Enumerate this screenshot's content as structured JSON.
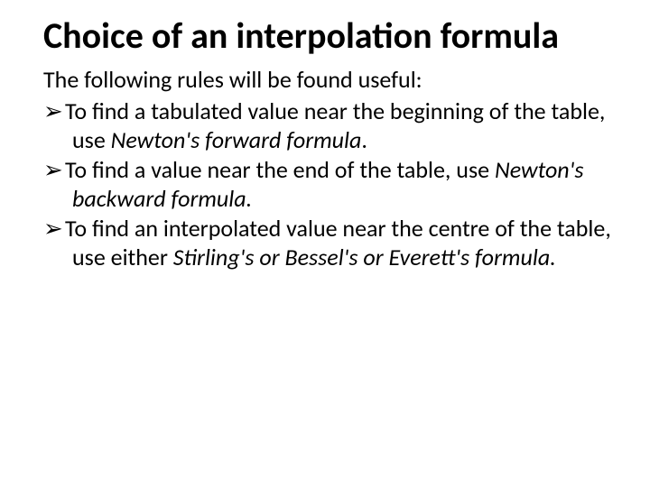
{
  "title": "Choice of an interpolation formula",
  "intro": "The following rules will be found useful:",
  "bullet_glyph": "➢",
  "items": [
    {
      "pre": "To find a tabulated value near the beginning of the table, use ",
      "ital": "Newton's forward formula",
      "post": "."
    },
    {
      "pre": "To find a value near the end of the table, use ",
      "ital": "Newton's backward formula.",
      "post": ""
    },
    {
      "pre": "To find an interpolated value near the centre of the table, use either ",
      "ital": "Stirling's or Bessel's or Everett's formula.",
      "post": ""
    }
  ]
}
